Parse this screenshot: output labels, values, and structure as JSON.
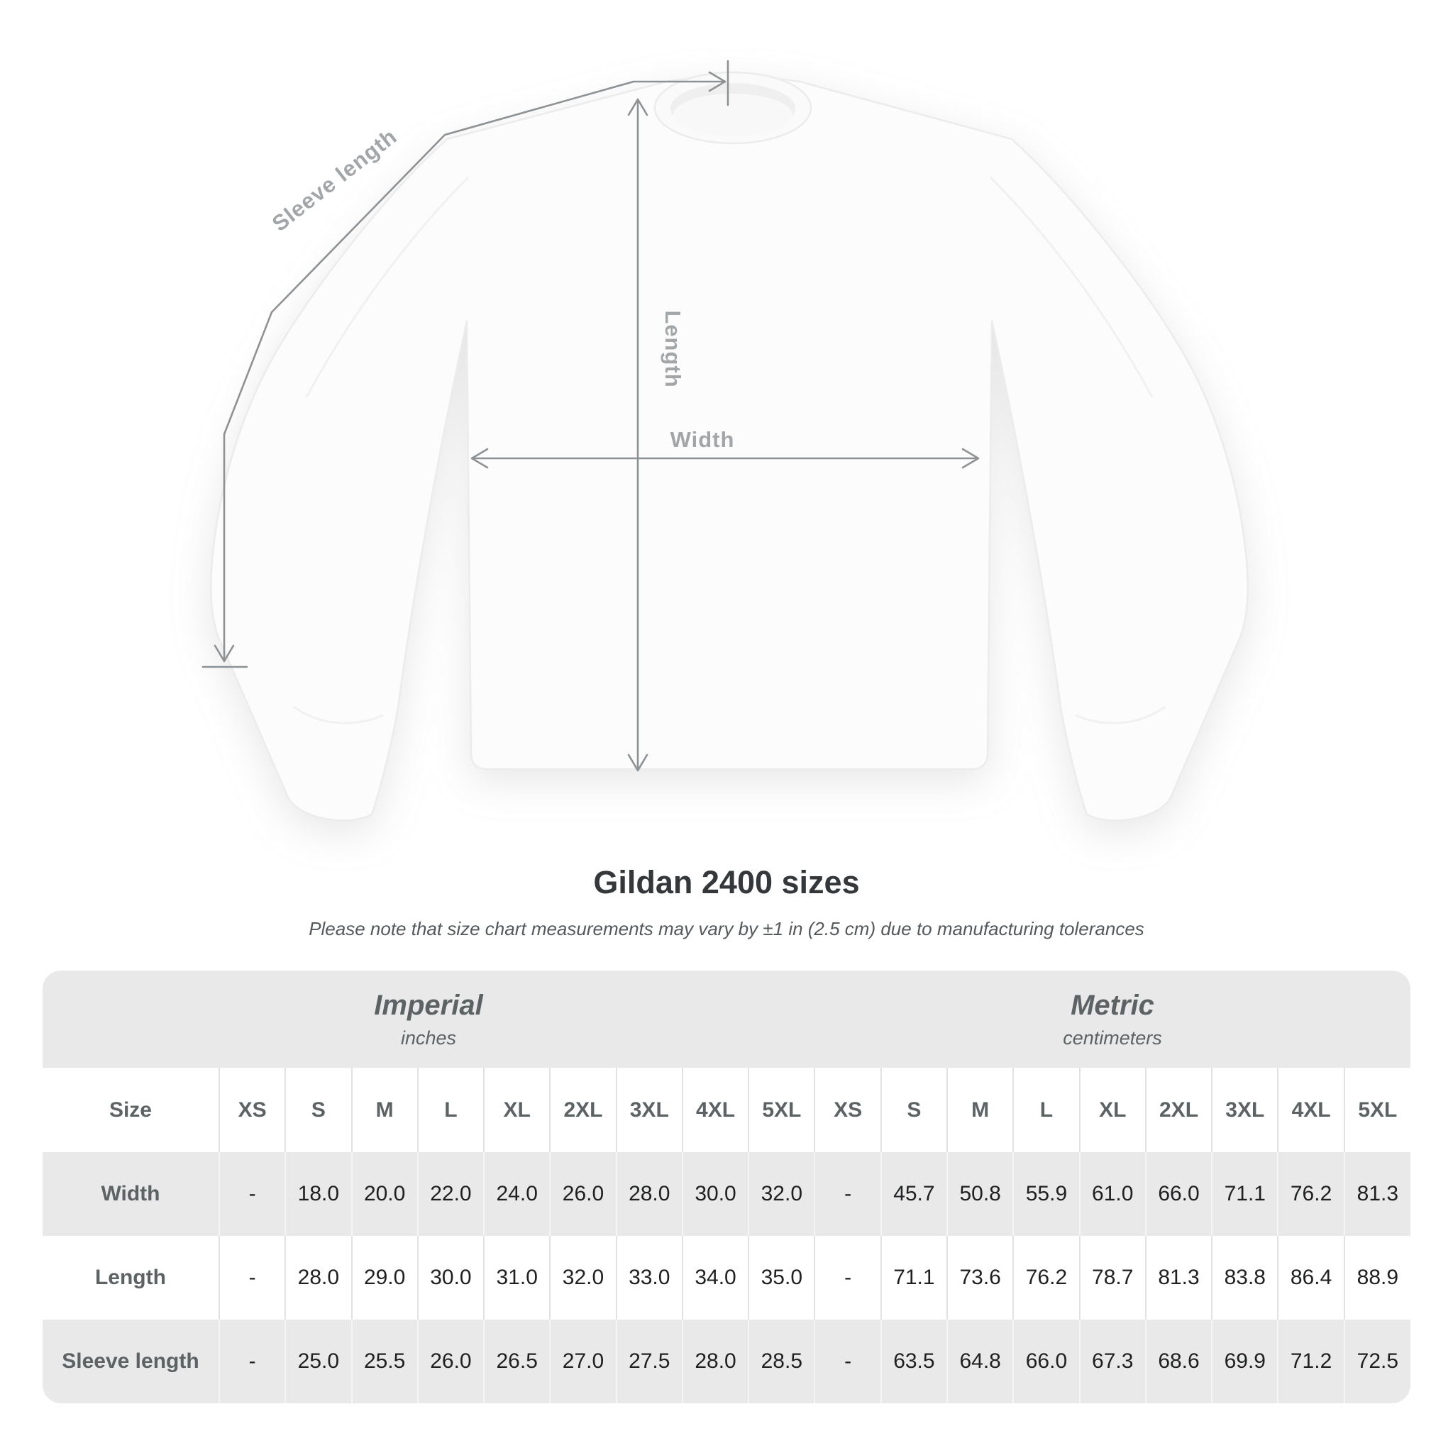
{
  "page": {
    "background": "#ffffff"
  },
  "diagram": {
    "labels": {
      "sleeve_length": "Sleeve length",
      "length": "Length",
      "width": "Width"
    },
    "line_color": "#8e9294",
    "label_color": "#a2a6a8"
  },
  "title": "Gildan 2400 sizes",
  "subtitle": "Please note that size chart measurements may vary by ±1 in (2.5 cm) due to manufacturing tolerances",
  "table": {
    "size_header": "Size",
    "unit_groups": [
      {
        "name": "Imperial",
        "unit": "inches"
      },
      {
        "name": "Metric",
        "unit": "centimeters"
      }
    ],
    "sizes": [
      "XS",
      "S",
      "M",
      "L",
      "XL",
      "2XL",
      "3XL",
      "4XL",
      "5XL"
    ],
    "rows": [
      {
        "label": "Width",
        "imperial": [
          "-",
          "18.0",
          "20.0",
          "22.0",
          "24.0",
          "26.0",
          "28.0",
          "30.0",
          "32.0"
        ],
        "metric": [
          "-",
          "45.7",
          "50.8",
          "55.9",
          "61.0",
          "66.0",
          "71.1",
          "76.2",
          "81.3"
        ]
      },
      {
        "label": "Length",
        "imperial": [
          "-",
          "28.0",
          "29.0",
          "30.0",
          "31.0",
          "32.0",
          "33.0",
          "34.0",
          "35.0"
        ],
        "metric": [
          "-",
          "71.1",
          "73.6",
          "76.2",
          "78.7",
          "81.3",
          "83.8",
          "86.4",
          "88.9"
        ]
      },
      {
        "label": "Sleeve length",
        "imperial": [
          "-",
          "25.0",
          "25.5",
          "26.0",
          "26.5",
          "27.0",
          "27.5",
          "28.0",
          "28.5"
        ],
        "metric": [
          "-",
          "63.5",
          "64.8",
          "66.0",
          "67.3",
          "68.6",
          "69.9",
          "71.2",
          "72.5"
        ]
      }
    ]
  },
  "chart_data": {
    "type": "table",
    "title": "Gildan 2400 sizes",
    "note": "Please note that size chart measurements may vary by ±1 in (2.5 cm) due to manufacturing tolerances",
    "sizes": [
      "XS",
      "S",
      "M",
      "L",
      "XL",
      "2XL",
      "3XL",
      "4XL",
      "5XL"
    ],
    "measurements": [
      {
        "name": "Width",
        "imperial_in": [
          null,
          18.0,
          20.0,
          22.0,
          24.0,
          26.0,
          28.0,
          30.0,
          32.0
        ],
        "metric_cm": [
          null,
          45.7,
          50.8,
          55.9,
          61.0,
          66.0,
          71.1,
          76.2,
          81.3
        ]
      },
      {
        "name": "Length",
        "imperial_in": [
          null,
          28.0,
          29.0,
          30.0,
          31.0,
          32.0,
          33.0,
          34.0,
          35.0
        ],
        "metric_cm": [
          null,
          71.1,
          73.6,
          76.2,
          78.7,
          81.3,
          83.8,
          86.4,
          88.9
        ]
      },
      {
        "name": "Sleeve length",
        "imperial_in": [
          null,
          25.0,
          25.5,
          26.0,
          26.5,
          27.0,
          27.5,
          28.0,
          28.5
        ],
        "metric_cm": [
          null,
          63.5,
          64.8,
          66.0,
          67.3,
          68.6,
          69.9,
          71.2,
          72.5
        ]
      }
    ]
  }
}
